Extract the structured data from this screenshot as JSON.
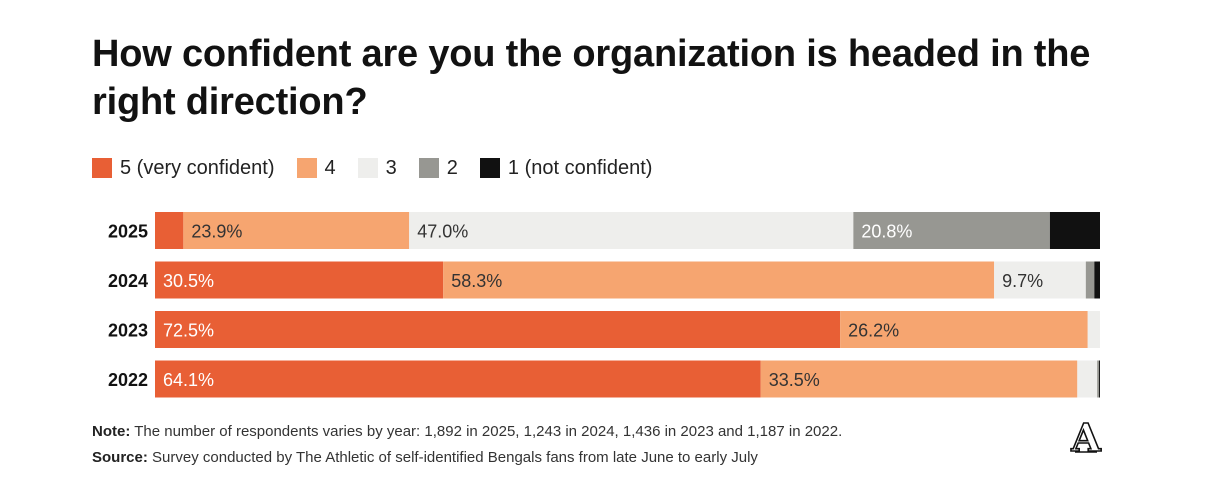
{
  "title": "How confident are you the organization is headed in the right direction?",
  "legend": [
    {
      "label": "5 (very confident)",
      "color": "#e85f35"
    },
    {
      "label": "4",
      "color": "#f6a570"
    },
    {
      "label": "3",
      "color": "#eeeeec"
    },
    {
      "label": "2",
      "color": "#979792"
    },
    {
      "label": "1 (not confident)",
      "color": "#111111"
    }
  ],
  "chart_data": {
    "type": "bar",
    "orientation": "horizontal",
    "stacked": true,
    "percent_axis": true,
    "categories": [
      "2025",
      "2024",
      "2023",
      "2022"
    ],
    "series": [
      {
        "name": "5 (very confident)",
        "color": "#e85f35",
        "values": [
          3.0,
          30.5,
          72.5,
          64.1
        ],
        "labels": [
          "",
          "30.5%",
          "72.5%",
          "64.1%"
        ]
      },
      {
        "name": "4",
        "color": "#f6a570",
        "values": [
          23.9,
          58.3,
          26.2,
          33.5
        ],
        "labels": [
          "23.9%",
          "58.3%",
          "26.2%",
          "33.5%"
        ]
      },
      {
        "name": "3",
        "color": "#eeeeec",
        "values": [
          47.0,
          9.7,
          1.3,
          2.1
        ],
        "labels": [
          "47.0%",
          "9.7%",
          "",
          ""
        ]
      },
      {
        "name": "2",
        "color": "#979792",
        "values": [
          20.8,
          0.9,
          0.0,
          0.2
        ],
        "labels": [
          "20.8%",
          "",
          "",
          ""
        ]
      },
      {
        "name": "1 (not confident)",
        "color": "#111111",
        "values": [
          5.3,
          0.6,
          0.0,
          0.1
        ],
        "labels": [
          "",
          "",
          "",
          ""
        ]
      }
    ],
    "label_colors": [
      "#ffffff",
      "#333333",
      "#333333",
      "#ffffff",
      "#ffffff"
    ]
  },
  "note": {
    "prefix": "Note:",
    "text": " The number of respondents varies by year: 1,892 in 2025, 1,243 in 2024, 1,436 in 2023 and 1,187 in 2022."
  },
  "source": {
    "prefix": "Source:",
    "text": " Survey conducted by The Athletic of self-identified Bengals fans from late June to early July"
  },
  "logo": {
    "icon": "athletic-logo-icon",
    "text": "A"
  }
}
